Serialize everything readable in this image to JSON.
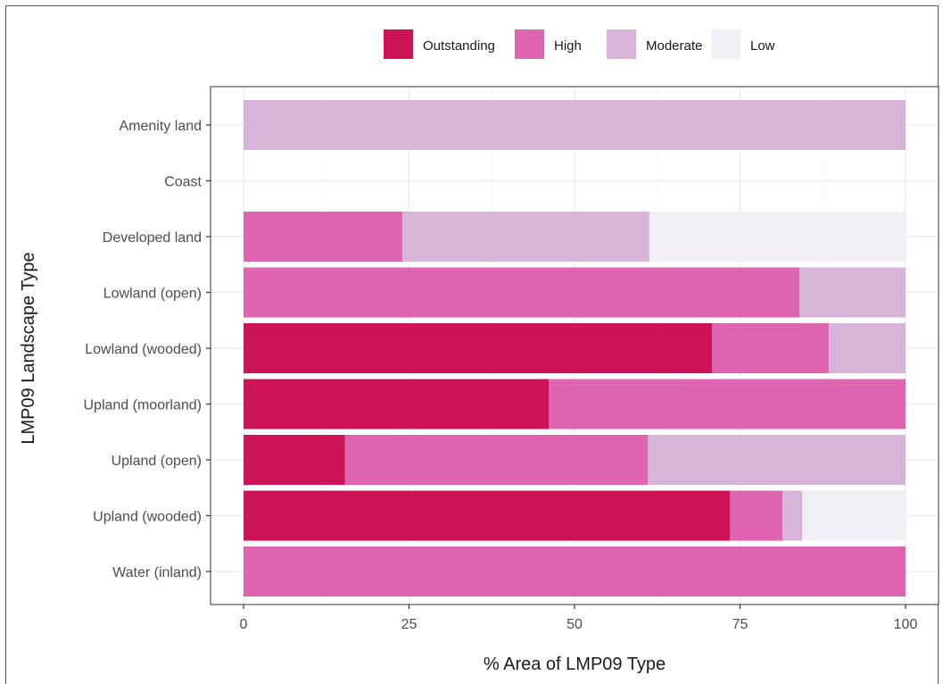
{
  "chart_data": {
    "type": "bar",
    "orientation": "horizontal",
    "stacked": true,
    "categories": [
      "Amenity land",
      "Coast",
      "Developed land",
      "Lowland (open)",
      "Lowland (wooded)",
      "Upland (moorland)",
      "Upland (open)",
      "Upland (wooded)",
      "Water (inland)"
    ],
    "series": [
      {
        "name": "Outstanding",
        "color": "#ce1256",
        "values": [
          0,
          0,
          0,
          0,
          70.8,
          46.1,
          15.3,
          73.5,
          0
        ]
      },
      {
        "name": "High",
        "color": "#df65b0",
        "values": [
          0,
          0,
          24.0,
          84.0,
          17.6,
          53.9,
          45.8,
          7.9,
          100
        ]
      },
      {
        "name": "Moderate",
        "color": "#d7b5d8",
        "values": [
          100,
          0,
          37.3,
          16.0,
          11.6,
          0,
          38.9,
          3.0,
          0
        ]
      },
      {
        "name": "Low",
        "color": "#f1eef6",
        "values": [
          0,
          0,
          38.7,
          0,
          0,
          0,
          0,
          15.6,
          0
        ]
      }
    ],
    "xlabel": "% Area of LMP09 Type",
    "ylabel": "LMP09 Landscape Type",
    "xlim": [
      0,
      100
    ],
    "xticks": [
      0,
      25,
      50,
      75,
      100
    ],
    "grid": true,
    "legend_position": "top"
  }
}
